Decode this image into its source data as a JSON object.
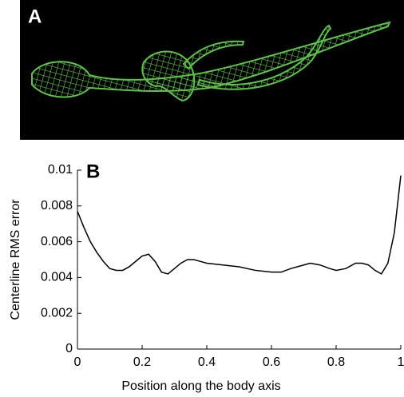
{
  "panel_a": {
    "label": "A"
  },
  "chart_data": {
    "type": "line",
    "panel_label": "B",
    "xlabel": "Position along the body axis",
    "ylabel": "Centerline RMS error",
    "x": [
      0,
      0.02,
      0.04,
      0.06,
      0.08,
      0.1,
      0.12,
      0.14,
      0.16,
      0.18,
      0.2,
      0.22,
      0.24,
      0.26,
      0.28,
      0.3,
      0.32,
      0.34,
      0.36,
      0.4,
      0.45,
      0.5,
      0.55,
      0.6,
      0.63,
      0.66,
      0.7,
      0.72,
      0.75,
      0.78,
      0.8,
      0.83,
      0.86,
      0.88,
      0.9,
      0.92,
      0.94,
      0.96,
      0.98,
      1.0
    ],
    "series": [
      {
        "color": "#000000",
        "values": [
          0.0077,
          0.0068,
          0.006,
          0.0054,
          0.0049,
          0.0045,
          0.0044,
          0.0044,
          0.0046,
          0.0049,
          0.0052,
          0.0053,
          0.0049,
          0.0043,
          0.0042,
          0.0045,
          0.0048,
          0.005,
          0.005,
          0.0048,
          0.0047,
          0.0046,
          0.0044,
          0.0043,
          0.0043,
          0.0045,
          0.0047,
          0.0048,
          0.0047,
          0.0045,
          0.0044,
          0.0045,
          0.0048,
          0.0048,
          0.0047,
          0.0044,
          0.0042,
          0.0048,
          0.0065,
          0.0097
        ]
      }
    ],
    "xlim": [
      0,
      1
    ],
    "ylim": [
      0,
      0.01
    ],
    "xticks": [
      0,
      0.2,
      0.4,
      0.6,
      0.8,
      1
    ],
    "yticks": [
      0,
      0.002,
      0.004,
      0.006,
      0.008,
      0.01
    ]
  }
}
